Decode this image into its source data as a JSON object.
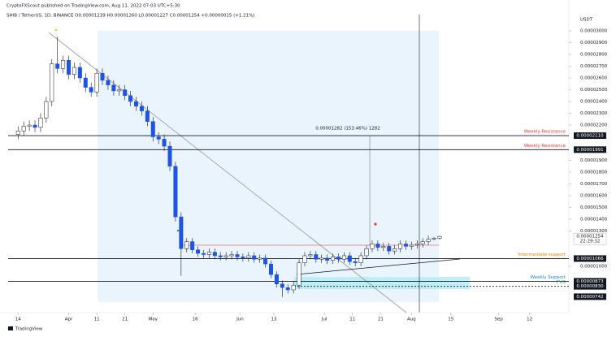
{
  "chart_data": {
    "type": "candlestick",
    "publisher": "CryptoFXScout published on TradingView.com, Aug 11, 2022 07:03 UTC+5:30",
    "title": "SHIB / TetherUS, 1D, BINANCE O0.00001239 H0.00001260 L0.00001227 C0.00001254 +0.00000015 (+1.21%)",
    "currency": "USDT",
    "footer": "TradingView",
    "color_up": "#ffffff",
    "color_down": "#1e53e5",
    "x": [
      "Mar 14",
      "Mar 16",
      "Mar 18",
      "Mar 20",
      "Mar 22",
      "Mar 24",
      "Mar 26",
      "Mar 28",
      "Mar 30",
      "Apr 1",
      "Apr 3",
      "Apr 5",
      "Apr 7",
      "Apr 9",
      "Apr 11",
      "Apr 13",
      "Apr 15",
      "Apr 17",
      "Apr 19",
      "Apr 21",
      "Apr 23",
      "Apr 25",
      "Apr 27",
      "Apr 29",
      "May 1",
      "May 3",
      "May 5",
      "May 7",
      "May 9",
      "May 11",
      "May 13",
      "May 15",
      "May 17",
      "May 19",
      "May 21",
      "May 23",
      "May 25",
      "May 27",
      "May 29",
      "May 31",
      "Jun 2",
      "Jun 4",
      "Jun 6",
      "Jun 8",
      "Jun 10",
      "Jun 12",
      "Jun 14",
      "Jun 16",
      "Jun 18",
      "Jun 20",
      "Jun 22",
      "Jun 24",
      "Jun 26",
      "Jun 28",
      "Jun 30",
      "Jul 2",
      "Jul 4",
      "Jul 6",
      "Jul 8",
      "Jul 10",
      "Jul 12",
      "Jul 14",
      "Jul 16",
      "Jul 18",
      "Jul 20",
      "Jul 22",
      "Jul 24",
      "Jul 26",
      "Jul 28",
      "Jul 30",
      "Aug 1",
      "Aug 3",
      "Aug 5",
      "Aug 7",
      "Aug 9",
      "Aug 11"
    ],
    "open": [
      2.12e-05,
      2.15e-05,
      2.19e-05,
      2.2e-05,
      2.18e-05,
      2.26e-05,
      2.4e-05,
      2.72e-05,
      2.68e-05,
      2.75e-05,
      2.63e-05,
      2.69e-05,
      2.6e-05,
      2.52e-05,
      2.48e-05,
      2.64e-05,
      2.58e-05,
      2.54e-05,
      2.49e-05,
      2.5e-05,
      2.45e-05,
      2.4e-05,
      2.36e-05,
      2.32e-05,
      2.23e-05,
      2.1e-05,
      2.08e-05,
      2.02e-05,
      1.85e-05,
      1.42e-05,
      1.15e-05,
      1.21e-05,
      1.14e-05,
      1.11e-05,
      1.1e-05,
      1.12e-05,
      1.09e-05,
      1.08e-05,
      1.09e-05,
      1.1e-05,
      1.08e-05,
      1.07e-05,
      1.09e-05,
      1.06e-05,
      1.07e-05,
      1.02e-05,
      9.3e-06,
      8.5e-06,
      8.2e-06,
      8e-06,
      8.4e-06,
      1.03e-05,
      1.09e-05,
      1.1e-05,
      1.06e-05,
      1.07e-05,
      1.05e-05,
      1.08e-05,
      1.06e-05,
      1.09e-05,
      1.04e-05,
      1.03e-05,
      1.09e-05,
      1.15e-05,
      1.19e-05,
      1.16e-05,
      1.17e-05,
      1.13e-05,
      1.15e-05,
      1.19e-05,
      1.17e-05,
      1.18e-05,
      1.19e-05,
      1.21e-05,
      1.23e-05,
      1.239e-05
    ],
    "high": [
      2.19e-05,
      2.23e-05,
      2.24e-05,
      2.24e-05,
      2.3e-05,
      2.44e-05,
      2.76e-05,
      2.95e-05,
      2.79e-05,
      2.79e-05,
      2.73e-05,
      2.73e-05,
      2.64e-05,
      2.56e-05,
      2.68e-05,
      2.68e-05,
      2.62e-05,
      2.58e-05,
      2.54e-05,
      2.54e-05,
      2.49e-05,
      2.44e-05,
      2.4e-05,
      2.36e-05,
      2.27e-05,
      2.14e-05,
      2.12e-05,
      2.06e-05,
      1.89e-05,
      1.46e-05,
      1.24e-05,
      1.24e-05,
      1.17e-05,
      1.14e-05,
      1.15e-05,
      1.15e-05,
      1.12e-05,
      1.12e-05,
      1.13e-05,
      1.13e-05,
      1.11e-05,
      1.12e-05,
      1.12e-05,
      1.1e-05,
      1.1e-05,
      1.05e-05,
      9.6e-06,
      8.8e-06,
      8.5e-06,
      8.7e-06,
      1.06e-05,
      1.12e-05,
      1.13e-05,
      1.13e-05,
      1.1e-05,
      1.1e-05,
      1.11e-05,
      1.11e-05,
      1.12e-05,
      1.12e-05,
      1.07e-05,
      1.12e-05,
      1.18e-05,
      1.22e-05,
      1.22e-05,
      1.2e-05,
      1.2e-05,
      1.18e-05,
      1.22e-05,
      1.22e-05,
      1.21e-05,
      1.22e-05,
      1.24e-05,
      1.26e-05,
      1.25e-05,
      1.26e-05
    ],
    "low": [
      2.08e-05,
      2.11e-05,
      2.15e-05,
      2.14e-05,
      2.14e-05,
      2.22e-05,
      2.36e-05,
      2.64e-05,
      2.64e-05,
      2.59e-05,
      2.59e-05,
      2.56e-05,
      2.48e-05,
      2.44e-05,
      2.44e-05,
      2.54e-05,
      2.5e-05,
      2.45e-05,
      2.45e-05,
      2.41e-05,
      2.36e-05,
      2.32e-05,
      2.28e-05,
      2.19e-05,
      2.06e-05,
      2.04e-05,
      1.98e-05,
      1.81e-05,
      1.38e-05,
      9.2e-06,
      1.12e-05,
      1.11e-05,
      1.08e-05,
      1.07e-05,
      1.07e-05,
      1.06e-05,
      1.05e-05,
      1.05e-05,
      1.06e-05,
      1.05e-05,
      1.04e-05,
      1.04e-05,
      1.03e-05,
      1.03e-05,
      9.9e-06,
      9e-06,
      8.2e-06,
      7.4e-06,
      7.7e-06,
      7.7e-06,
      8.1e-06,
      1e-05,
      1.06e-05,
      1.03e-05,
      1.03e-05,
      1.02e-05,
      1.02e-05,
      1.03e-05,
      1.03e-05,
      1.01e-05,
      1e-05,
      1e-05,
      1.06e-05,
      1.12e-05,
      1.13e-05,
      1.13e-05,
      1.1e-05,
      1.1e-05,
      1.12e-05,
      1.14e-05,
      1.14e-05,
      1.15e-05,
      1.16e-05,
      1.18e-05,
      1.22e-05,
      1.227e-05
    ],
    "close": [
      2.15e-05,
      2.19e-05,
      2.2e-05,
      2.18e-05,
      2.26e-05,
      2.4e-05,
      2.72e-05,
      2.68e-05,
      2.75e-05,
      2.63e-05,
      2.69e-05,
      2.6e-05,
      2.52e-05,
      2.48e-05,
      2.64e-05,
      2.58e-05,
      2.54e-05,
      2.49e-05,
      2.5e-05,
      2.45e-05,
      2.4e-05,
      2.36e-05,
      2.32e-05,
      2.23e-05,
      2.1e-05,
      2.08e-05,
      2.02e-05,
      1.85e-05,
      1.42e-05,
      1.15e-05,
      1.21e-05,
      1.14e-05,
      1.11e-05,
      1.1e-05,
      1.12e-05,
      1.09e-05,
      1.08e-05,
      1.09e-05,
      1.1e-05,
      1.08e-05,
      1.07e-05,
      1.09e-05,
      1.06e-05,
      1.07e-05,
      1.02e-05,
      9.3e-06,
      8.5e-06,
      8.2e-06,
      8e-06,
      8.4e-06,
      1.03e-05,
      1.09e-05,
      1.1e-05,
      1.06e-05,
      1.07e-05,
      1.05e-05,
      1.08e-05,
      1.06e-05,
      1.09e-05,
      1.04e-05,
      1.03e-05,
      1.09e-05,
      1.15e-05,
      1.19e-05,
      1.16e-05,
      1.17e-05,
      1.13e-05,
      1.15e-05,
      1.19e-05,
      1.17e-05,
      1.18e-05,
      1.19e-05,
      1.21e-05,
      1.23e-05,
      1.239e-05,
      1.254e-05
    ],
    "xlim": [
      "Mar 9",
      "Sep 26"
    ],
    "xticks": [
      {
        "value": "Mar 14",
        "label": "14"
      },
      {
        "value": "Apr 1",
        "label": "Apr"
      },
      {
        "value": "Apr 11",
        "label": "11"
      },
      {
        "value": "Apr 21",
        "label": "21"
      },
      {
        "value": "May 1",
        "label": "May"
      },
      {
        "value": "May 16",
        "label": "16"
      },
      {
        "value": "Jun 1",
        "label": "Jun"
      },
      {
        "value": "Jun 13",
        "label": "13"
      },
      {
        "value": "Jul 1",
        "label": "Jul"
      },
      {
        "value": "Jul 11",
        "label": "11"
      },
      {
        "value": "Jul 21",
        "label": "21"
      },
      {
        "value": "Aug 1",
        "label": "Aug"
      },
      {
        "value": "Aug 15",
        "label": "15"
      },
      {
        "value": "Sep 1",
        "label": "Sep"
      },
      {
        "value": "Sep 12",
        "label": "12"
      }
    ],
    "ylim": [
      6.07e-06,
      3.138e-05
    ],
    "yticks": [
      {
        "value": 3e-05,
        "label": "0.00003000"
      },
      {
        "value": 2.9e-05,
        "label": "0.00002900"
      },
      {
        "value": 2.8e-05,
        "label": "0.00002800"
      },
      {
        "value": 2.7e-05,
        "label": "0.00002700"
      },
      {
        "value": 2.6e-05,
        "label": "0.00002600"
      },
      {
        "value": 2.5e-05,
        "label": "0.00002500"
      },
      {
        "value": 2.4e-05,
        "label": "0.00002400"
      },
      {
        "value": 2.3e-05,
        "label": "0.00002300"
      },
      {
        "value": 2.2e-05,
        "label": "0.00002200"
      },
      {
        "value": 1.9e-05,
        "label": "0.00001900"
      },
      {
        "value": 1.8e-05,
        "label": "0.00001800"
      },
      {
        "value": 1.7e-05,
        "label": "0.00001700"
      },
      {
        "value": 1.6e-05,
        "label": "0.00001600"
      },
      {
        "value": 1.5e-05,
        "label": "0.00001500"
      },
      {
        "value": 1.4e-05,
        "label": "0.00001400"
      },
      {
        "value": 1.3e-05,
        "label": "0.00001300"
      },
      {
        "value": 1e-05,
        "label": "0.00001000"
      }
    ],
    "levels": [
      {
        "value": 2.11e-05,
        "label": "0.00002110",
        "text": "Weekly Resistance",
        "color": "#e53935",
        "style": "solid"
      },
      {
        "value": 1.991e-05,
        "label": "0.00001991",
        "text": "Weekly Resistance",
        "color": "#e53935",
        "style": "solid"
      },
      {
        "value": 1.066e-05,
        "label": "0.00001066",
        "text": "Intermediate support",
        "color": "#f57c00",
        "style": "solid"
      },
      {
        "value": 8.73e-06,
        "label": "0.00000873",
        "text": "Weekly Support",
        "color": "#1e88e5",
        "style": "solid"
      },
      {
        "value": 8.3e-06,
        "label": "0.00000830",
        "text": "FVG",
        "color": "#43a047",
        "style": "dashed"
      },
      {
        "value": 7.42e-06,
        "label": "0.00000742",
        "color": "#43a047"
      }
    ],
    "last_price": {
      "value": 1.254e-05,
      "label": "0.00001254",
      "countdown": "22:29:32"
    },
    "measure": "0.00001282 (153.46%) 1282"
  }
}
